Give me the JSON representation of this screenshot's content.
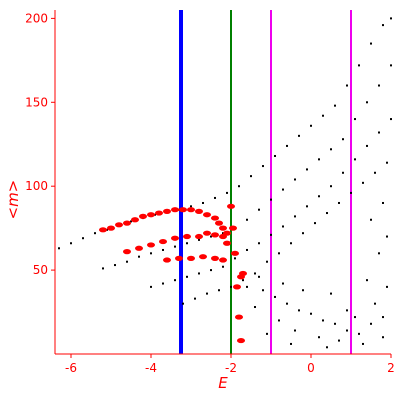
{
  "chart_data": {
    "type": "scatter",
    "title": "",
    "xlabel": "E",
    "ylabel": "<m>",
    "xlim": [
      -6.4,
      2.0
    ],
    "ylim": [
      0,
      205
    ],
    "xticks": [
      "-6",
      "-4",
      "-2",
      "0",
      "2"
    ],
    "xtick_values": [
      -6,
      -4,
      -2,
      0,
      2
    ],
    "yticks": [
      "50",
      "100",
      "150",
      "200"
    ],
    "ytick_values": [
      50,
      100,
      150,
      200
    ],
    "grid": false,
    "axis_color": "#ff0000",
    "vertical_lines": [
      {
        "x": -3.25,
        "color": "#0000ff",
        "weight": "thick"
      },
      {
        "x": -2.0,
        "color": "#008000",
        "weight": "thin"
      },
      {
        "x": -1.0,
        "color": "#ee00ee",
        "weight": "thin"
      },
      {
        "x": 1.0,
        "color": "#ee00ee",
        "weight": "thin"
      }
    ],
    "series": [
      {
        "color": "#000000",
        "points": [
          [
            -6.3,
            63
          ],
          [
            -6.0,
            66
          ],
          [
            -5.7,
            69
          ],
          [
            -5.4,
            72
          ],
          [
            -5.1,
            74
          ],
          [
            -4.8,
            77
          ],
          [
            -4.5,
            79
          ],
          [
            -4.2,
            81
          ],
          [
            -3.9,
            83
          ],
          [
            -3.6,
            85
          ],
          [
            -3.3,
            86
          ],
          [
            -3.0,
            88
          ],
          [
            -2.7,
            90
          ],
          [
            -2.4,
            93
          ],
          [
            -2.1,
            96
          ],
          [
            -1.8,
            100
          ],
          [
            -1.5,
            106
          ],
          [
            -1.2,
            112
          ],
          [
            -0.9,
            118
          ],
          [
            -0.6,
            124
          ],
          [
            -0.3,
            130
          ],
          [
            0.0,
            136
          ],
          [
            0.3,
            142
          ],
          [
            0.6,
            148
          ],
          [
            0.9,
            160
          ],
          [
            1.2,
            172
          ],
          [
            1.5,
            185
          ],
          [
            1.8,
            196
          ],
          [
            2.0,
            200
          ]
        ]
      },
      {
        "color": "#000000",
        "points": [
          [
            -5.2,
            51
          ],
          [
            -4.9,
            53
          ],
          [
            -4.6,
            55
          ],
          [
            -4.3,
            58
          ],
          [
            -4.0,
            60
          ],
          [
            -3.7,
            62
          ],
          [
            -3.4,
            64
          ],
          [
            -3.1,
            66
          ],
          [
            -2.8,
            68
          ],
          [
            -2.5,
            70
          ],
          [
            -2.2,
            72
          ],
          [
            -1.9,
            75
          ],
          [
            -1.6,
            80
          ],
          [
            -1.3,
            86
          ],
          [
            -1.0,
            92
          ],
          [
            -0.7,
            98
          ],
          [
            -0.4,
            104
          ],
          [
            -0.1,
            110
          ],
          [
            0.2,
            116
          ],
          [
            0.5,
            122
          ],
          [
            0.8,
            128
          ],
          [
            1.1,
            140
          ],
          [
            1.4,
            150
          ],
          [
            1.7,
            160
          ],
          [
            2.0,
            172
          ]
        ]
      },
      {
        "color": "#000000",
        "points": [
          [
            -4.0,
            40
          ],
          [
            -3.7,
            42
          ],
          [
            -3.4,
            44
          ],
          [
            -3.1,
            46
          ],
          [
            -2.8,
            48
          ],
          [
            -2.5,
            50
          ],
          [
            -2.2,
            52
          ],
          [
            -1.9,
            57
          ],
          [
            -1.6,
            62
          ],
          [
            -1.3,
            66
          ],
          [
            -1.0,
            71
          ],
          [
            -0.7,
            76
          ],
          [
            -0.4,
            82
          ],
          [
            -0.1,
            88
          ],
          [
            0.2,
            94
          ],
          [
            0.5,
            100
          ],
          [
            0.8,
            108
          ],
          [
            1.1,
            116
          ],
          [
            1.4,
            124
          ],
          [
            1.7,
            132
          ],
          [
            2.0,
            140
          ]
        ]
      },
      {
        "color": "#000000",
        "points": [
          [
            -3.2,
            30
          ],
          [
            -2.9,
            33
          ],
          [
            -2.6,
            36
          ],
          [
            -2.3,
            38
          ],
          [
            -2.0,
            40
          ],
          [
            -1.7,
            44
          ],
          [
            -1.4,
            48
          ],
          [
            -1.1,
            55
          ],
          [
            -0.8,
            60
          ],
          [
            -0.5,
            66
          ],
          [
            -0.2,
            72
          ],
          [
            0.1,
            78
          ],
          [
            0.4,
            84
          ],
          [
            0.7,
            90
          ],
          [
            1.0,
            96
          ],
          [
            1.3,
            102
          ],
          [
            1.6,
            108
          ],
          [
            1.9,
            114
          ]
        ]
      },
      {
        "color": "#000000",
        "points": [
          [
            -1.6,
            40
          ],
          [
            -1.2,
            38
          ],
          [
            -0.9,
            34
          ],
          [
            -0.6,
            30
          ],
          [
            -0.3,
            26
          ],
          [
            0.0,
            24
          ],
          [
            0.3,
            20
          ],
          [
            0.6,
            18
          ],
          [
            0.9,
            14
          ],
          [
            1.2,
            12
          ],
          [
            1.5,
            18
          ],
          [
            1.8,
            22
          ],
          [
            -1.4,
            28
          ],
          [
            -0.8,
            20
          ],
          [
            -0.4,
            14
          ],
          [
            0.2,
            10
          ],
          [
            0.7,
            8
          ],
          [
            1.1,
            22
          ],
          [
            1.6,
            30
          ],
          [
            1.9,
            40
          ],
          [
            -1.8,
            22
          ],
          [
            -1.1,
            12
          ],
          [
            -0.5,
            6
          ],
          [
            0.4,
            4
          ],
          [
            1.3,
            6
          ],
          [
            1.8,
            10
          ],
          [
            -1.3,
            46
          ],
          [
            -0.7,
            42
          ],
          [
            0.5,
            36
          ],
          [
            1.4,
            44
          ],
          [
            1.7,
            60
          ],
          [
            1.9,
            70
          ],
          [
            1.5,
            80
          ],
          [
            1.8,
            90
          ],
          [
            -0.2,
            38
          ],
          [
            0.9,
            26
          ]
        ]
      },
      {
        "color": "#ff0000",
        "points": [
          [
            -5.2,
            74
          ],
          [
            -5.0,
            75
          ],
          [
            -4.8,
            77
          ],
          [
            -4.6,
            78
          ],
          [
            -4.4,
            80
          ],
          [
            -4.2,
            82
          ],
          [
            -4.0,
            83
          ],
          [
            -3.8,
            84
          ],
          [
            -3.6,
            85
          ],
          [
            -3.4,
            86
          ],
          [
            -3.2,
            86
          ],
          [
            -3.0,
            86
          ],
          [
            -2.8,
            85
          ],
          [
            -2.6,
            83
          ],
          [
            -2.4,
            81
          ],
          [
            -2.3,
            78
          ],
          [
            -2.2,
            75
          ],
          [
            -2.1,
            72
          ],
          [
            -4.6,
            61
          ],
          [
            -4.3,
            63
          ],
          [
            -4.0,
            65
          ],
          [
            -3.7,
            67
          ],
          [
            -3.4,
            69
          ],
          [
            -3.1,
            70
          ],
          [
            -2.8,
            70
          ],
          [
            -2.6,
            72
          ],
          [
            -2.4,
            71
          ],
          [
            -2.2,
            70
          ],
          [
            -2.1,
            66
          ],
          [
            -3.6,
            56
          ],
          [
            -3.3,
            57
          ],
          [
            -3.0,
            57
          ],
          [
            -2.7,
            58
          ],
          [
            -2.4,
            57
          ],
          [
            -2.2,
            56
          ],
          [
            -2.0,
            88
          ],
          [
            -1.95,
            75
          ],
          [
            -1.9,
            60
          ],
          [
            -1.85,
            40
          ],
          [
            -1.8,
            22
          ],
          [
            -1.75,
            8
          ],
          [
            -1.7,
            48
          ],
          [
            -1.75,
            46
          ]
        ]
      }
    ]
  }
}
